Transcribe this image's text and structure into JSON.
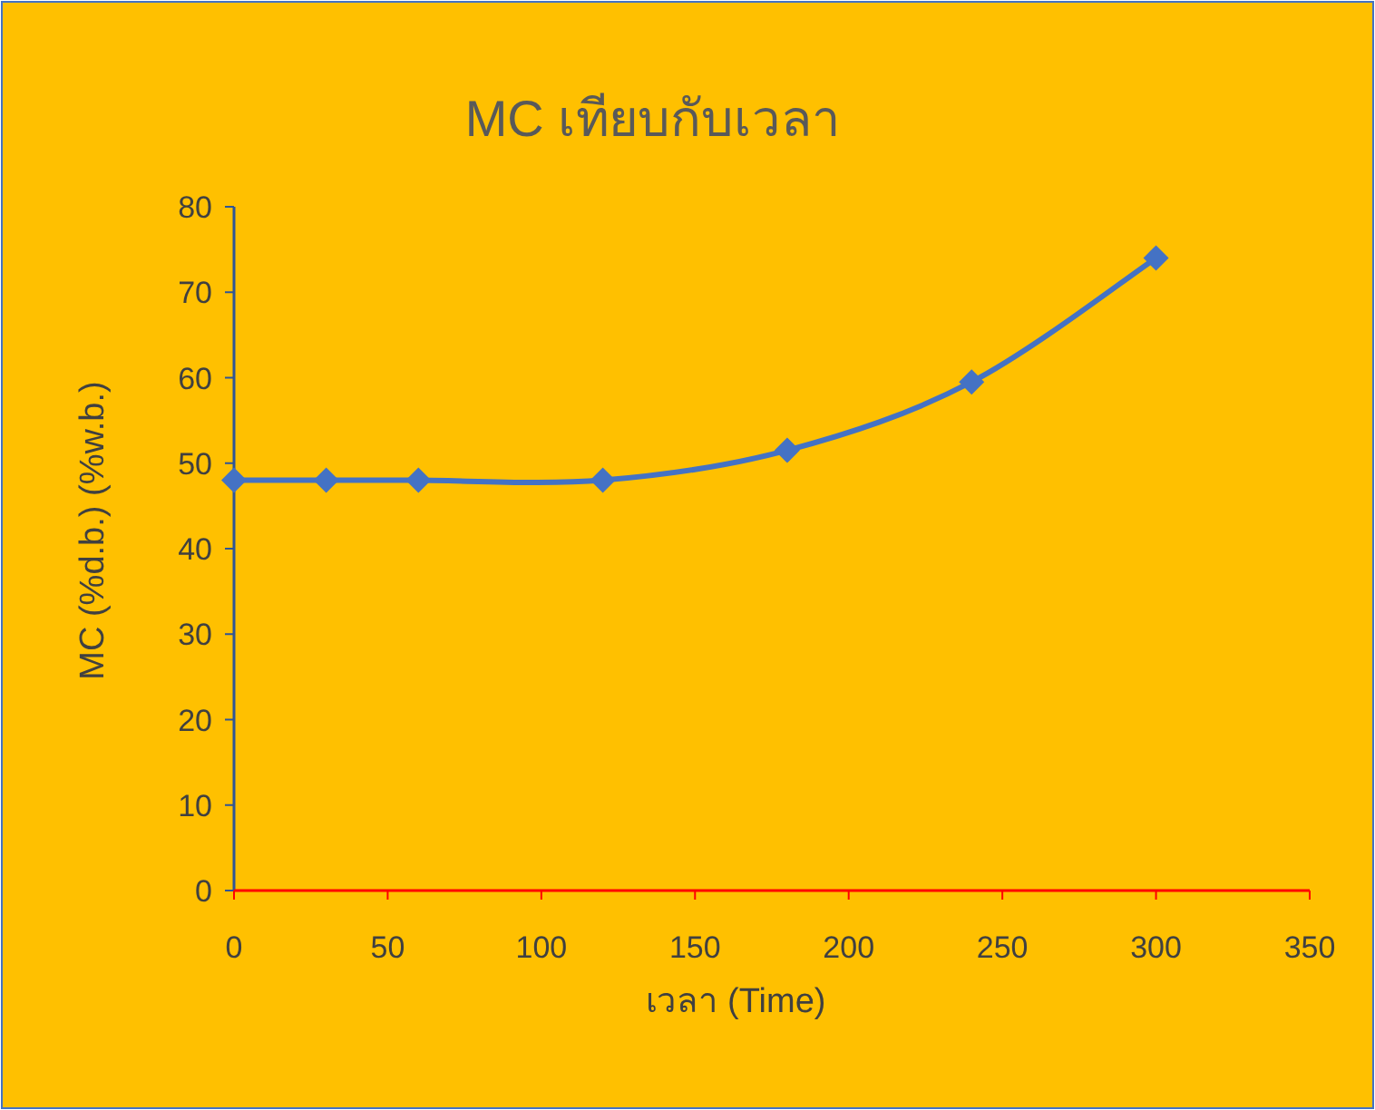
{
  "chart_data": {
    "type": "line",
    "title": "MC เทียบกับเวลา",
    "xlabel": "เวลา (Time)",
    "ylabel": "MC  (%d.b.) (%w.b.)",
    "x": [
      0,
      30,
      60,
      120,
      180,
      240,
      300
    ],
    "series": [
      {
        "color": "#4472c4",
        "values": [
          48,
          48,
          48,
          48,
          51.5,
          59.5,
          74
        ]
      }
    ],
    "xlim": [
      0,
      350
    ],
    "xticks": [
      0,
      50,
      100,
      150,
      200,
      250,
      300,
      350
    ],
    "ylim": [
      0,
      80
    ],
    "yticks": [
      0,
      10,
      20,
      30,
      40,
      50,
      60,
      70,
      80
    ],
    "grid": false,
    "marker": "diamond",
    "line_style": "solid"
  }
}
